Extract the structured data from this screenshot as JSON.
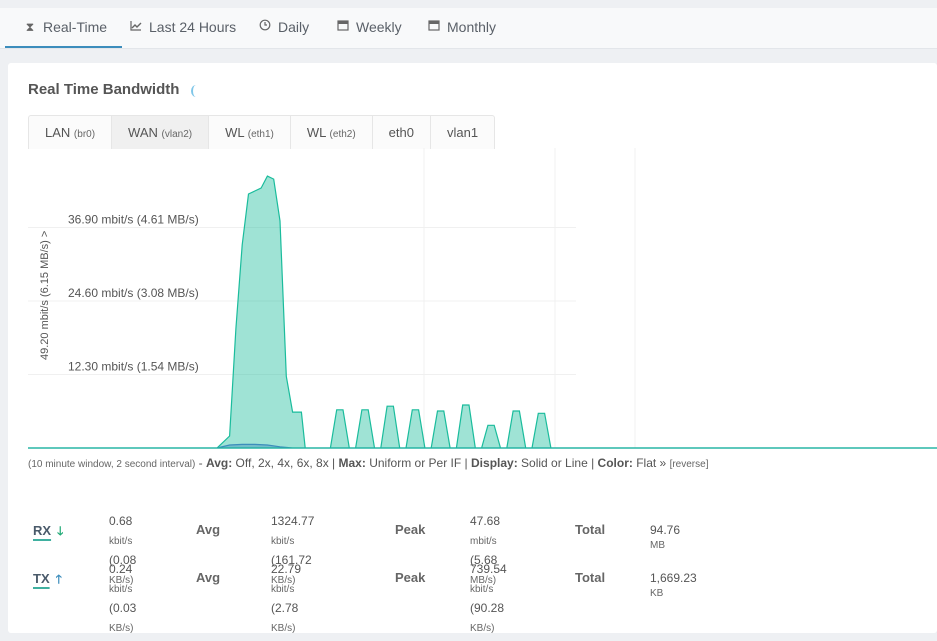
{
  "nav": {
    "tabs": [
      {
        "label": "Real-Time",
        "icon": "hourglass-icon"
      },
      {
        "label": "Last 24 Hours",
        "icon": "area-chart-icon"
      },
      {
        "label": "Daily",
        "icon": "clock-icon"
      },
      {
        "label": "Weekly",
        "icon": "calendar-icon"
      },
      {
        "label": "Monthly",
        "icon": "calendar-icon"
      }
    ]
  },
  "card": {
    "title": "Real Time Bandwidth"
  },
  "interfaces": [
    {
      "name": "LAN",
      "sub": "(br0)"
    },
    {
      "name": "WAN",
      "sub": "(vlan2)"
    },
    {
      "name": "WL",
      "sub": "(eth1)"
    },
    {
      "name": "WL",
      "sub": "(eth2)"
    },
    {
      "name": "eth0",
      "sub": ""
    },
    {
      "name": "vlan1",
      "sub": ""
    }
  ],
  "chart_data": {
    "type": "area",
    "ylabel": "49.20 mbit/s (6.15 MB/s) >",
    "yticks": [
      {
        "value": 12.3,
        "label": "12.30 mbit/s (1.54 MB/s)"
      },
      {
        "value": 24.6,
        "label": "24.60 mbit/s (3.08 MB/s)"
      },
      {
        "value": 36.9,
        "label": "36.90 mbit/s (4.61 MB/s)"
      }
    ],
    "ylim": [
      0,
      49.2
    ],
    "grid": true,
    "series": [
      {
        "color": "#1abc9c",
        "points": [
          [
            0,
            0
          ],
          [
            15,
            0
          ],
          [
            16,
            2
          ],
          [
            16.5,
            20
          ],
          [
            17,
            34
          ],
          [
            17.5,
            42.5
          ],
          [
            18,
            43
          ],
          [
            18.5,
            43.5
          ],
          [
            19,
            45.5
          ],
          [
            19.5,
            45
          ],
          [
            20,
            38
          ],
          [
            20.5,
            12
          ],
          [
            21,
            6
          ],
          [
            21.7,
            6
          ],
          [
            22,
            0
          ],
          [
            24,
            0
          ],
          [
            24.5,
            6.4
          ],
          [
            25,
            6.4
          ],
          [
            25.5,
            0
          ],
          [
            26,
            0
          ],
          [
            26.5,
            6.4
          ],
          [
            27,
            6.4
          ],
          [
            27.5,
            0
          ],
          [
            28,
            0
          ],
          [
            28.5,
            7
          ],
          [
            29,
            7
          ],
          [
            29.5,
            0
          ],
          [
            30,
            0
          ],
          [
            30.5,
            6.4
          ],
          [
            31,
            6.4
          ],
          [
            31.5,
            0
          ],
          [
            32,
            0
          ],
          [
            32.5,
            6.2
          ],
          [
            33,
            6.2
          ],
          [
            33.5,
            0
          ],
          [
            34,
            0
          ],
          [
            34.5,
            7.2
          ],
          [
            35,
            7.2
          ],
          [
            35.5,
            0
          ],
          [
            36,
            0
          ],
          [
            36.5,
            3.8
          ],
          [
            37,
            3.8
          ],
          [
            37.5,
            0
          ],
          [
            38,
            0
          ],
          [
            38.5,
            6.2
          ],
          [
            39,
            6.2
          ],
          [
            39.5,
            0
          ],
          [
            40,
            0
          ],
          [
            40.5,
            5.8
          ],
          [
            41,
            5.8
          ],
          [
            41.5,
            0
          ],
          [
            73,
            0
          ]
        ]
      },
      {
        "color": "#3c8dbc",
        "points": [
          [
            0,
            0
          ],
          [
            15,
            0
          ],
          [
            16,
            0.5
          ],
          [
            17,
            0.6
          ],
          [
            18,
            0.6
          ],
          [
            19,
            0.5
          ],
          [
            20,
            0.2
          ],
          [
            21,
            0
          ],
          [
            73,
            0
          ]
        ]
      }
    ]
  },
  "options": {
    "window_note": "(10 minute window, 2 second interval)",
    "sep": " - ",
    "avg_label": "Avg:",
    "avg_options": " Off, 2x, 4x, 6x, 8x",
    "pipe1": " | ",
    "max_label": "Max:",
    "max_options": " Uniform or Per IF",
    "pipe2": " | ",
    "display_label": "Display:",
    "display_options": " Solid or Line",
    "pipe3": " | ",
    "color_label": "Color:",
    "color_options": " Flat »",
    "reverse": "[reverse]"
  },
  "stats": {
    "avg_header": "Avg",
    "peak_header": "Peak",
    "total_header": "Total",
    "rx": {
      "label": "RX",
      "current_num": "0.68",
      "current_unit": "kbit/s",
      "current_b": "(0.08",
      "current_b_unit": "KB/s)",
      "avg_num": "1324.77",
      "avg_unit": "kbit/s",
      "avg_b": "(161.72",
      "avg_b_unit": "KB/s)",
      "peak_num": "47.68",
      "peak_unit": "mbit/s",
      "peak_b": "(5.68",
      "peak_b_unit": "MB/s)",
      "total_num": "94.76",
      "total_unit": "MB"
    },
    "tx": {
      "label": "TX",
      "current_num": "0.24",
      "current_unit": "kbit/s",
      "current_b": "(0.03",
      "current_b_unit": "KB/s)",
      "avg_num": "22.79",
      "avg_unit": "kbit/s",
      "avg_b": "(2.78",
      "avg_b_unit": "KB/s)",
      "peak_num": "739.54",
      "peak_unit": "kbit/s",
      "peak_b": "(90.28",
      "peak_b_unit": "KB/s)",
      "total_num": "1,669.23",
      "total_unit": "KB"
    }
  }
}
